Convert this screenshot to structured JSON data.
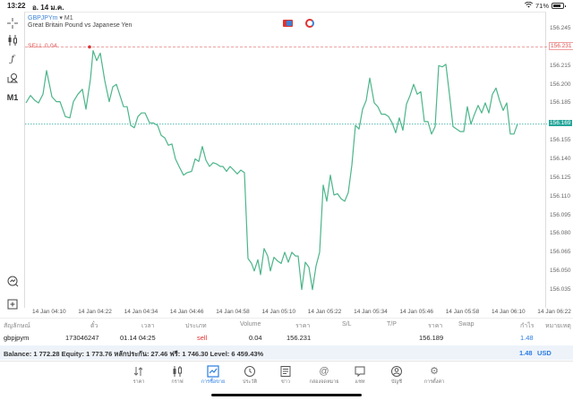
{
  "status_bar": {
    "time": "13:22",
    "date": "อ. 14 ม.ค.",
    "battery": "71%"
  },
  "chart_header": {
    "symbol": "GBPJPYm",
    "timeframe": "M1",
    "description": "Great Britain Pound vs Japanese Yen",
    "sell_label": "SELL 0.04"
  },
  "left_tools": [
    {
      "name": "crosshair-icon",
      "glyph": "+"
    },
    {
      "name": "candlestick-icon",
      "glyph": "⫼"
    },
    {
      "name": "indicators-icon",
      "glyph": "ƒ"
    },
    {
      "name": "objects-icon",
      "glyph": "⌕"
    },
    {
      "name": "timeframe-button",
      "glyph": "M1"
    }
  ],
  "bottom_tools": [
    {
      "name": "trade-icon",
      "glyph": "⊘"
    },
    {
      "name": "new-order-icon",
      "glyph": "⊞"
    }
  ],
  "y_axis": {
    "labels": [
      "156.245",
      "156.215",
      "156.200",
      "156.185",
      "156.155",
      "156.140",
      "156.125",
      "156.110",
      "156.095",
      "156.080",
      "156.065",
      "156.050",
      "156.035"
    ],
    "sell_price": "156.231",
    "current_price": "156.169"
  },
  "x_axis": {
    "labels": [
      "14 Jan 04:10",
      "14 Jan 04:22",
      "14 Jan 04:34",
      "14 Jan 04:46",
      "14 Jan 04:58",
      "14 Jan 05:10",
      "14 Jan 05:22",
      "14 Jan 05:34",
      "14 Jan 05:46",
      "14 Jan 05:58",
      "14 Jan 06:10",
      "14 Jan 06:22"
    ]
  },
  "chart_data": {
    "type": "line",
    "title": "GBPJPYm M1 — Great Britain Pound vs Japanese Yen",
    "xlabel": "",
    "ylabel": "",
    "ylim": [
      156.028,
      156.258
    ],
    "grid": false,
    "categories": [
      "14 Jan 04:10",
      "14 Jan 04:22",
      "14 Jan 04:34",
      "14 Jan 04:46",
      "14 Jan 04:58",
      "14 Jan 05:10",
      "14 Jan 05:22",
      "14 Jan 05:34",
      "14 Jan 05:46",
      "14 Jan 05:58",
      "14 Jan 06:10",
      "14 Jan 06:22"
    ],
    "annotations": [
      {
        "type": "hline",
        "label": "SELL 0.04",
        "value": 156.231,
        "color": "#e05050"
      },
      {
        "type": "hline",
        "label": "current",
        "value": 156.169,
        "color": "#26a69a"
      }
    ],
    "series": [
      {
        "name": "GBPJPYm close",
        "color": "#4cb58a",
        "points": [
          [
            0,
            156.186
          ],
          [
            5,
            156.192
          ],
          [
            10,
            156.188
          ],
          [
            14,
            156.186
          ],
          [
            19,
            156.193
          ],
          [
            23,
            156.212
          ],
          [
            29,
            156.191
          ],
          [
            34,
            156.187
          ],
          [
            38,
            156.187
          ],
          [
            44,
            156.175
          ],
          [
            49,
            156.174
          ],
          [
            53,
            156.187
          ],
          [
            58,
            156.193
          ],
          [
            63,
            156.197
          ],
          [
            67,
            156.181
          ],
          [
            72,
            156.205
          ],
          [
            75,
            156.228
          ],
          [
            79,
            156.22
          ],
          [
            83,
            156.226
          ],
          [
            88,
            156.204
          ],
          [
            93,
            156.187
          ],
          [
            97,
            156.199
          ],
          [
            101,
            156.201
          ],
          [
            105,
            156.192
          ],
          [
            109,
            156.183
          ],
          [
            113,
            156.183
          ],
          [
            117,
            156.168
          ],
          [
            121,
            156.166
          ],
          [
            125,
            156.175
          ],
          [
            129,
            156.178
          ],
          [
            133,
            156.178
          ],
          [
            138,
            156.17
          ],
          [
            142,
            156.17
          ],
          [
            147,
            156.168
          ],
          [
            151,
            156.16
          ],
          [
            155,
            156.158
          ],
          [
            159,
            156.152
          ],
          [
            163,
            156.153
          ],
          [
            167,
            156.141
          ],
          [
            171,
            156.135
          ],
          [
            176,
            156.128
          ],
          [
            180,
            156.13
          ],
          [
            185,
            156.131
          ],
          [
            189,
            156.141
          ],
          [
            193,
            156.139
          ],
          [
            197,
            156.151
          ],
          [
            201,
            156.14
          ],
          [
            205,
            156.135
          ],
          [
            209,
            156.138
          ],
          [
            213,
            156.137
          ],
          [
            217,
            156.135
          ],
          [
            220,
            156.135
          ],
          [
            224,
            156.131
          ],
          [
            228,
            156.135
          ],
          [
            232,
            156.132
          ],
          [
            236,
            156.129
          ],
          [
            240,
            156.132
          ],
          [
            244,
            156.13
          ],
          [
            248,
            156.061
          ],
          [
            252,
            156.057
          ],
          [
            255,
            156.051
          ],
          [
            259,
            156.06
          ],
          [
            262,
            156.048
          ],
          [
            266,
            156.069
          ],
          [
            270,
            156.063
          ],
          [
            273,
            156.051
          ],
          [
            277,
            156.062
          ],
          [
            281,
            156.059
          ],
          [
            285,
            156.057
          ],
          [
            289,
            156.066
          ],
          [
            293,
            156.058
          ],
          [
            297,
            156.066
          ],
          [
            301,
            156.063
          ],
          [
            304,
            156.063
          ],
          [
            308,
            156.036
          ],
          [
            312,
            156.058
          ],
          [
            316,
            156.054
          ],
          [
            320,
            156.036
          ],
          [
            324,
            156.055
          ],
          [
            328,
            156.066
          ],
          [
            332,
            156.12
          ],
          [
            336,
            156.107
          ],
          [
            340,
            156.128
          ],
          [
            344,
            156.112
          ],
          [
            348,
            156.113
          ],
          [
            352,
            156.109
          ],
          [
            356,
            156.107
          ],
          [
            360,
            156.114
          ],
          [
            364,
            156.136
          ],
          [
            368,
            156.168
          ],
          [
            372,
            156.165
          ],
          [
            376,
            156.181
          ],
          [
            380,
            156.188
          ],
          [
            384,
            156.206
          ],
          [
            389,
            156.186
          ],
          [
            393,
            156.183
          ],
          [
            397,
            156.177
          ],
          [
            401,
            156.177
          ],
          [
            405,
            156.175
          ],
          [
            409,
            156.17
          ],
          [
            413,
            156.162
          ],
          [
            417,
            156.174
          ],
          [
            421,
            156.164
          ],
          [
            425,
            156.185
          ],
          [
            429,
            156.192
          ],
          [
            433,
            156.201
          ],
          [
            437,
            156.193
          ],
          [
            441,
            156.195
          ],
          [
            445,
            156.171
          ],
          [
            449,
            156.171
          ],
          [
            453,
            156.161
          ],
          [
            457,
            156.167
          ],
          [
            461,
            156.216
          ],
          [
            465,
            156.215
          ],
          [
            469,
            156.217
          ],
          [
            473,
            156.193
          ],
          [
            477,
            156.167
          ],
          [
            481,
            156.165
          ],
          [
            485,
            156.163
          ],
          [
            489,
            156.163
          ],
          [
            493,
            156.183
          ],
          [
            497,
            156.169
          ],
          [
            501,
            156.177
          ],
          [
            505,
            156.184
          ],
          [
            509,
            156.178
          ],
          [
            513,
            156.186
          ],
          [
            517,
            156.178
          ],
          [
            521,
            156.193
          ],
          [
            525,
            156.198
          ],
          [
            529,
            156.188
          ],
          [
            533,
            156.18
          ],
          [
            537,
            156.186
          ],
          [
            541,
            156.161
          ],
          [
            545,
            156.161
          ],
          [
            549,
            156.169
          ]
        ]
      }
    ]
  },
  "positions_table": {
    "headers": [
      "สัญลักษณ์",
      "ตั๋ว",
      "เวลา",
      "ประเภท",
      "Volume",
      "ราคา",
      "S/L",
      "T/P",
      "ราคา",
      "Swap",
      "กำไร",
      "หมายเหตุ"
    ],
    "rows": [
      {
        "symbol": "gbpjpym",
        "ticket": "173046247",
        "time": "01.14 04:25",
        "type": "sell",
        "volume": "0.04",
        "open_price": "156.231",
        "sl": "",
        "tp": "",
        "price": "156.189",
        "swap": "",
        "profit": "1.48",
        "comment": ""
      }
    ]
  },
  "balance_bar": {
    "text": "Balance: 1 772.28 Equity: 1 773.76 หลักประกัน: 27.46 ฟรี: 1 746.30 Level: 6 459.43%",
    "total_profit": "1.48",
    "currency": "USD"
  },
  "tab_bar": {
    "tabs": [
      {
        "id": "quotes",
        "label": "ราคา",
        "icon": "⇅",
        "active": false
      },
      {
        "id": "chart",
        "label": "กราฟ",
        "icon": "⫼",
        "active": false
      },
      {
        "id": "trade",
        "label": "การซื้อขาย",
        "icon": "⤴",
        "active": true
      },
      {
        "id": "history",
        "label": "ประวัติ",
        "icon": "◷",
        "active": false
      },
      {
        "id": "news",
        "label": "ข่าว",
        "icon": "▤",
        "active": false
      },
      {
        "id": "mailbox",
        "label": "กล่องจดหมาย",
        "icon": "@",
        "active": false
      },
      {
        "id": "chat",
        "label": "แชท",
        "icon": "▭",
        "active": false
      },
      {
        "id": "account",
        "label": "บัญชี",
        "icon": "◉",
        "active": false
      },
      {
        "id": "settings",
        "label": "การตั้งค่า",
        "icon": "⚙",
        "active": false
      }
    ]
  }
}
